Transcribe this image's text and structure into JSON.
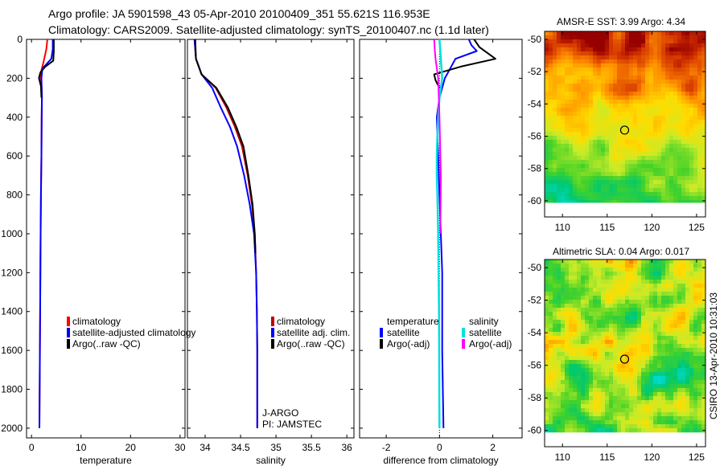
{
  "header": {
    "line1": "Argo profile: JA 5901598_43 05-Apr-2010 20100409_351 55.621S 116.953E",
    "line2": "Climatology: CARS2009. Satellite-adjusted climatology: synTS_20100407.nc (1.1d later)"
  },
  "credit": "CSIRO 13-Apr-2010 10:31:03",
  "chart_data": [
    {
      "id": "temperature",
      "type": "line",
      "xlabel": "temperature",
      "ylabel": "",
      "xlim": [
        -1,
        31
      ],
      "ylim": [
        2050,
        0
      ],
      "xticks": [
        0,
        10,
        20,
        30
      ],
      "yticks": [
        0,
        200,
        400,
        600,
        800,
        1000,
        1200,
        1400,
        1600,
        1800,
        2000
      ],
      "legend": [
        "climatology",
        "satellite-adjusted climatology",
        "Argo(..raw -QC)"
      ],
      "series": [
        {
          "name": "climatology",
          "color": "#ff0000",
          "width": 2,
          "x": [
            3.2,
            3.0,
            2.4,
            1.8,
            2.0,
            2.1,
            2.05,
            2.0,
            1.9,
            1.85,
            1.8,
            1.75,
            1.7,
            1.6
          ],
          "y": [
            0,
            50,
            120,
            180,
            230,
            300,
            400,
            600,
            800,
            1000,
            1200,
            1400,
            1600,
            2000
          ]
        },
        {
          "name": "satellite-adjusted climatology",
          "color": "#0000ff",
          "width": 2,
          "x": [
            4.3,
            4.3,
            4.0,
            2.2,
            2.0,
            2.1,
            2.05,
            2.0,
            1.9,
            1.85,
            1.8,
            1.75,
            1.7,
            1.6
          ],
          "y": [
            0,
            50,
            100,
            150,
            200,
            300,
            400,
            600,
            800,
            1000,
            1200,
            1400,
            1600,
            2000
          ]
        },
        {
          "name": "Argo(..raw -QC)",
          "color": "#000000",
          "width": 2,
          "x": [
            4.5,
            4.5,
            4.4,
            2.8,
            1.8,
            1.5,
            1.9,
            2.0
          ],
          "y": [
            0,
            60,
            110,
            140,
            170,
            200,
            240,
            300
          ]
        }
      ]
    },
    {
      "id": "salinity",
      "type": "line",
      "xlabel": "salinity",
      "ylabel": "",
      "xlim": [
        33.75,
        36.1
      ],
      "ylim": [
        2050,
        0
      ],
      "xticks": [
        34,
        34.5,
        35,
        35.5,
        36
      ],
      "yticks": [
        0,
        200,
        400,
        600,
        800,
        1000,
        1200,
        1400,
        1600,
        1800,
        2000
      ],
      "legend": [
        "climatology",
        "satellite adj. clim.",
        "Argo(..raw -QC)"
      ],
      "annotations": [
        "J-ARGO",
        "PI: JAMSTEC"
      ],
      "series": [
        {
          "name": "climatology",
          "color": "#c00000",
          "width": 2,
          "x": [
            33.85,
            33.87,
            33.95,
            34.15,
            34.3,
            34.42,
            34.52,
            34.6,
            34.66,
            34.7,
            34.72,
            34.73,
            34.735,
            34.735
          ],
          "y": [
            0,
            100,
            180,
            250,
            350,
            450,
            550,
            700,
            850,
            1000,
            1200,
            1400,
            1600,
            2000
          ]
        },
        {
          "name": "satellite adj. clim.",
          "color": "#0000ff",
          "width": 2,
          "x": [
            33.85,
            33.87,
            33.95,
            34.1,
            34.22,
            34.35,
            34.45,
            34.55,
            34.63,
            34.69,
            34.72,
            34.73,
            34.735,
            34.735
          ],
          "y": [
            0,
            100,
            180,
            250,
            350,
            450,
            550,
            700,
            850,
            1000,
            1200,
            1400,
            1600,
            2000
          ]
        },
        {
          "name": "Argo(..raw -QC)",
          "color": "#000000",
          "width": 2,
          "x": [
            33.86,
            33.87,
            33.95,
            34.16,
            34.32,
            34.44,
            34.54,
            34.61,
            34.67,
            34.7,
            34.71
          ],
          "y": [
            0,
            100,
            180,
            250,
            350,
            450,
            550,
            700,
            850,
            1000,
            1100
          ]
        }
      ]
    },
    {
      "id": "difference",
      "type": "line",
      "xlabel": "difference from climatology",
      "ylabel": "",
      "xlim": [
        -3,
        3.1
      ],
      "ylim": [
        2050,
        0
      ],
      "xticks": [
        -2,
        0,
        2
      ],
      "yticks": [
        0,
        200,
        400,
        600,
        800,
        1000,
        1200,
        1400,
        1600,
        1800,
        2000
      ],
      "legend_headers": [
        "temperature",
        "salinity"
      ],
      "legend": [
        "satellite",
        "Argo(-adj)",
        "satellite",
        "Argo(-adj)"
      ],
      "series": [
        {
          "name": "temperature satellite",
          "color": "#0000ff",
          "width": 2,
          "x": [
            1.1,
            1.2,
            1.4,
            0.6,
            0.4,
            0.2,
            0.0,
            -0.1,
            -0.05,
            0.0,
            0.05,
            0.1,
            0.1,
            0.15
          ],
          "y": [
            0,
            30,
            60,
            100,
            150,
            200,
            300,
            400,
            600,
            800,
            1000,
            1200,
            1600,
            2000
          ]
        },
        {
          "name": "temperature Argo(-adj)",
          "color": "#000000",
          "width": 2,
          "x": [
            1.3,
            1.5,
            2.1,
            0.8,
            -0.2,
            -0.15,
            0.0
          ],
          "y": [
            0,
            40,
            100,
            140,
            180,
            210,
            250
          ]
        },
        {
          "name": "salinity satellite",
          "color": "#00e0e0",
          "width": 2.5,
          "x": [
            0.0,
            0.05,
            0.1,
            0.0,
            -0.05,
            -0.08,
            -0.1,
            -0.1,
            -0.08,
            -0.05,
            -0.02,
            0.0
          ],
          "y": [
            0,
            100,
            200,
            300,
            400,
            500,
            600,
            700,
            800,
            1000,
            1400,
            2000
          ]
        },
        {
          "name": "salinity Argo(-adj)",
          "color": "#ff00ff",
          "width": 2,
          "x": [
            -0.2,
            -0.18,
            -0.15,
            -0.05,
            0.0,
            0.05,
            0.03
          ],
          "y": [
            0,
            50,
            100,
            200,
            400,
            700,
            1000
          ]
        }
      ]
    },
    {
      "id": "sst-map",
      "type": "heatmap",
      "title": "AMSR-E SST: 3.99 Argo: 4.34",
      "xlim": [
        108,
        126
      ],
      "ylim": [
        -61,
        -49.5
      ],
      "xticks": [
        110,
        115,
        120,
        125
      ],
      "yticks": [
        -50,
        -52,
        -54,
        -56,
        -58,
        -60
      ],
      "marker": {
        "lon": 116.953,
        "lat": -55.621
      }
    },
    {
      "id": "sla-map",
      "type": "heatmap",
      "title": "Altimetric SLA: 0.04 Argo: 0.017",
      "xlim": [
        108,
        126
      ],
      "ylim": [
        -61,
        -49.5
      ],
      "xticks": [
        110,
        115,
        120,
        125
      ],
      "yticks": [
        -50,
        -52,
        -54,
        -56,
        -58,
        -60
      ],
      "marker": {
        "lon": 116.953,
        "lat": -55.621
      }
    }
  ]
}
